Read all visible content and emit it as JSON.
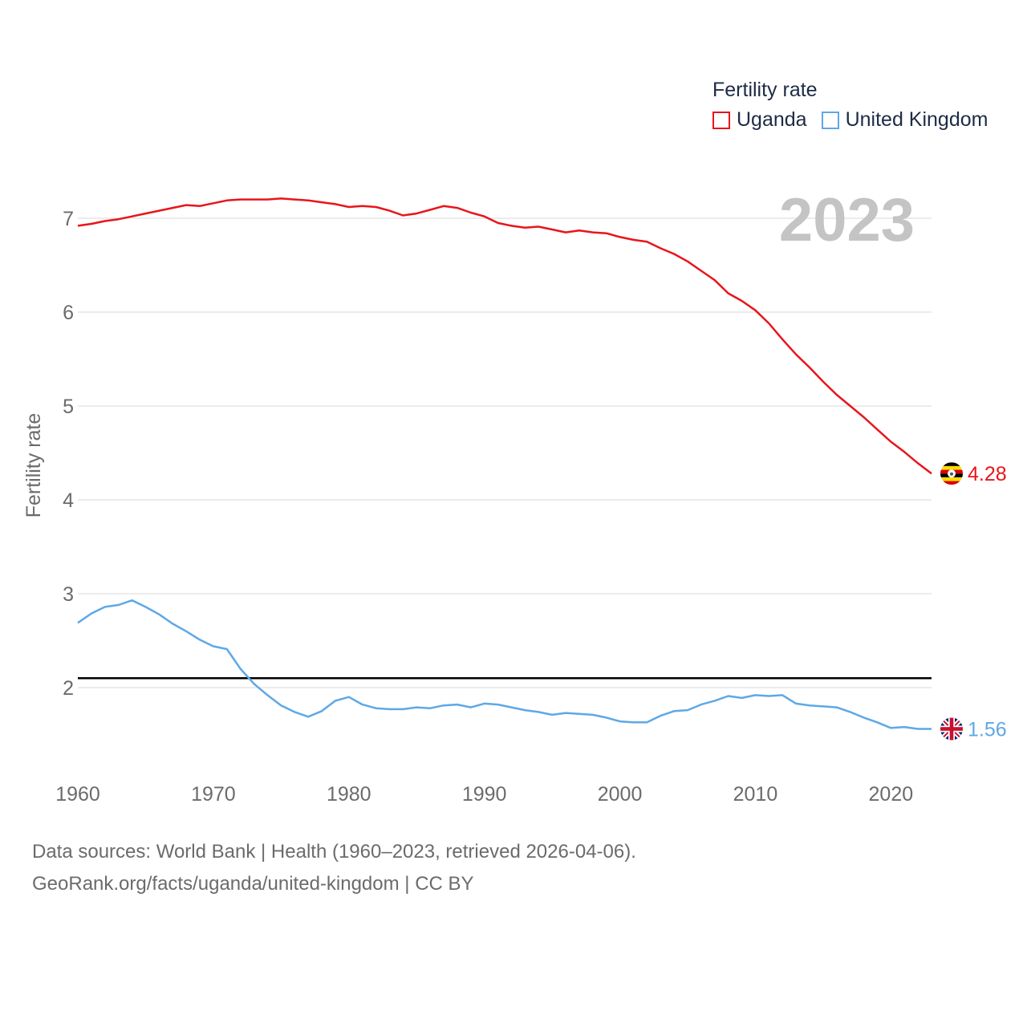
{
  "chart_data": {
    "type": "line",
    "title": "Fertility rate",
    "xlabel": "",
    "ylabel": "Fertility rate",
    "xlim": [
      1960,
      2023
    ],
    "ylim": [
      1,
      7.5
    ],
    "year_label": "2023",
    "x_ticks": [
      1960,
      1970,
      1980,
      1990,
      2000,
      2010,
      2020
    ],
    "y_ticks": [
      2,
      3,
      4,
      5,
      6,
      7
    ],
    "grid": true,
    "legend_position": "top-right",
    "reference_line": {
      "value": 2.1,
      "color": "#000000"
    },
    "x": [
      1960,
      1961,
      1962,
      1963,
      1964,
      1965,
      1966,
      1967,
      1968,
      1969,
      1970,
      1971,
      1972,
      1973,
      1974,
      1975,
      1976,
      1977,
      1978,
      1979,
      1980,
      1981,
      1982,
      1983,
      1984,
      1985,
      1986,
      1987,
      1988,
      1989,
      1990,
      1991,
      1992,
      1993,
      1994,
      1995,
      1996,
      1997,
      1998,
      1999,
      2000,
      2001,
      2002,
      2003,
      2004,
      2005,
      2006,
      2007,
      2008,
      2009,
      2010,
      2011,
      2012,
      2013,
      2014,
      2015,
      2016,
      2017,
      2018,
      2019,
      2020,
      2021,
      2022,
      2023
    ],
    "series": [
      {
        "name": "Uganda",
        "color": "#e8151b",
        "end_label": "4.28",
        "values": [
          6.92,
          6.94,
          6.97,
          6.99,
          7.02,
          7.05,
          7.08,
          7.11,
          7.14,
          7.13,
          7.16,
          7.19,
          7.2,
          7.2,
          7.2,
          7.21,
          7.2,
          7.19,
          7.17,
          7.15,
          7.12,
          7.13,
          7.12,
          7.08,
          7.03,
          7.05,
          7.09,
          7.13,
          7.11,
          7.06,
          7.02,
          6.95,
          6.92,
          6.9,
          6.91,
          6.88,
          6.85,
          6.87,
          6.85,
          6.84,
          6.8,
          6.77,
          6.75,
          6.68,
          6.62,
          6.54,
          6.44,
          6.34,
          6.2,
          6.12,
          6.02,
          5.88,
          5.71,
          5.55,
          5.41,
          5.26,
          5.12,
          5.0,
          4.88,
          4.75,
          4.62,
          4.51,
          4.39,
          4.28
        ]
      },
      {
        "name": "United Kingdom",
        "color": "#5ea8e6",
        "end_label": "1.56",
        "values": [
          2.69,
          2.79,
          2.86,
          2.88,
          2.93,
          2.86,
          2.78,
          2.68,
          2.6,
          2.51,
          2.44,
          2.41,
          2.2,
          2.04,
          1.92,
          1.81,
          1.74,
          1.69,
          1.75,
          1.86,
          1.9,
          1.82,
          1.78,
          1.77,
          1.77,
          1.79,
          1.78,
          1.81,
          1.82,
          1.79,
          1.83,
          1.82,
          1.79,
          1.76,
          1.74,
          1.71,
          1.73,
          1.72,
          1.71,
          1.68,
          1.64,
          1.63,
          1.63,
          1.7,
          1.75,
          1.76,
          1.82,
          1.86,
          1.91,
          1.89,
          1.92,
          1.91,
          1.92,
          1.83,
          1.81,
          1.8,
          1.79,
          1.74,
          1.68,
          1.63,
          1.57,
          1.58,
          1.56,
          1.56
        ]
      }
    ]
  },
  "legend": {
    "title": "Fertility rate",
    "items": [
      {
        "label": "Uganda",
        "color": "#e8151b"
      },
      {
        "label": "United Kingdom",
        "color": "#5ea8e6"
      }
    ]
  },
  "footer": {
    "line1": "Data sources: World Bank | Health (1960–2023, retrieved 2026-04-06).",
    "line2": "GeoRank.org/facts/uganda/united-kingdom | CC BY"
  }
}
